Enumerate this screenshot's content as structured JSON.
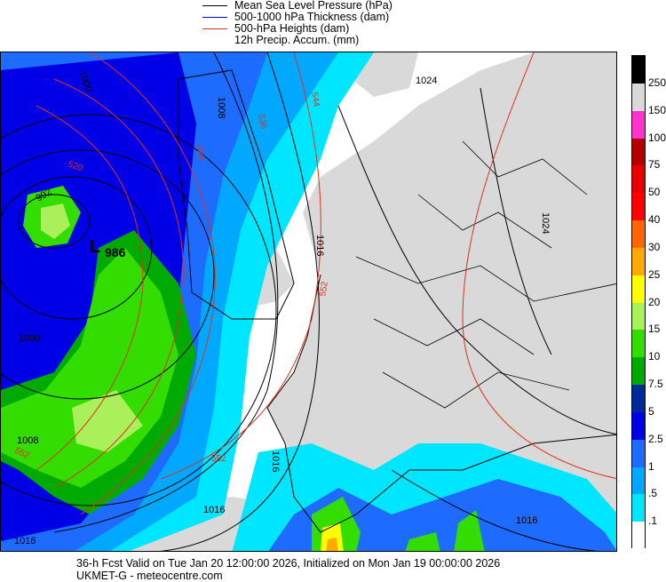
{
  "legend": [
    {
      "label": "Mean Sea Level Pressure (hPa)",
      "color": "#000000"
    },
    {
      "label": "500-1000 hPa Thickness (dam)",
      "color": "#0000cc"
    },
    {
      "label": "500-hPa Heights (dam)",
      "color": "#e0301e"
    },
    {
      "label": "12h Precip. Accum. (mm)",
      "color": null
    }
  ],
  "colorbar": {
    "labels": [
      "250",
      "150",
      "100",
      "75",
      "50",
      "40",
      "30",
      "25",
      "20",
      "15",
      "10",
      "7.5",
      "5",
      "2.5",
      "1",
      ".5",
      ".1"
    ],
    "colors": [
      "#000000",
      "#d9d9d9",
      "#ff33cc",
      "#b30000",
      "#e60000",
      "#ff0000",
      "#ff6600",
      "#ffaa00",
      "#ffff00",
      "#aaf05a",
      "#33dd00",
      "#00aa00",
      "#002a99",
      "#0000e6",
      "#1e6bff",
      "#00a8ff",
      "#00e6ff",
      "#ffffff"
    ]
  },
  "map": {
    "pressure_labels": [
      "1000",
      "1008",
      "1016",
      "1024",
      "1016",
      "1024",
      "1016",
      "1016",
      "1000",
      "1008",
      "992",
      "1016"
    ],
    "low_center": {
      "letter": "L",
      "value": "986"
    },
    "height_labels": [
      "520",
      "528",
      "536",
      "544",
      "552",
      "552",
      "552"
    ]
  },
  "footer": {
    "line1": "36-h Fcst Valid on Tue Jan 20 12:00:00 2026, Initialized on Mon Jan 19 00:00:00 2026",
    "line2": "UKMET-G  - meteocentre.com"
  }
}
